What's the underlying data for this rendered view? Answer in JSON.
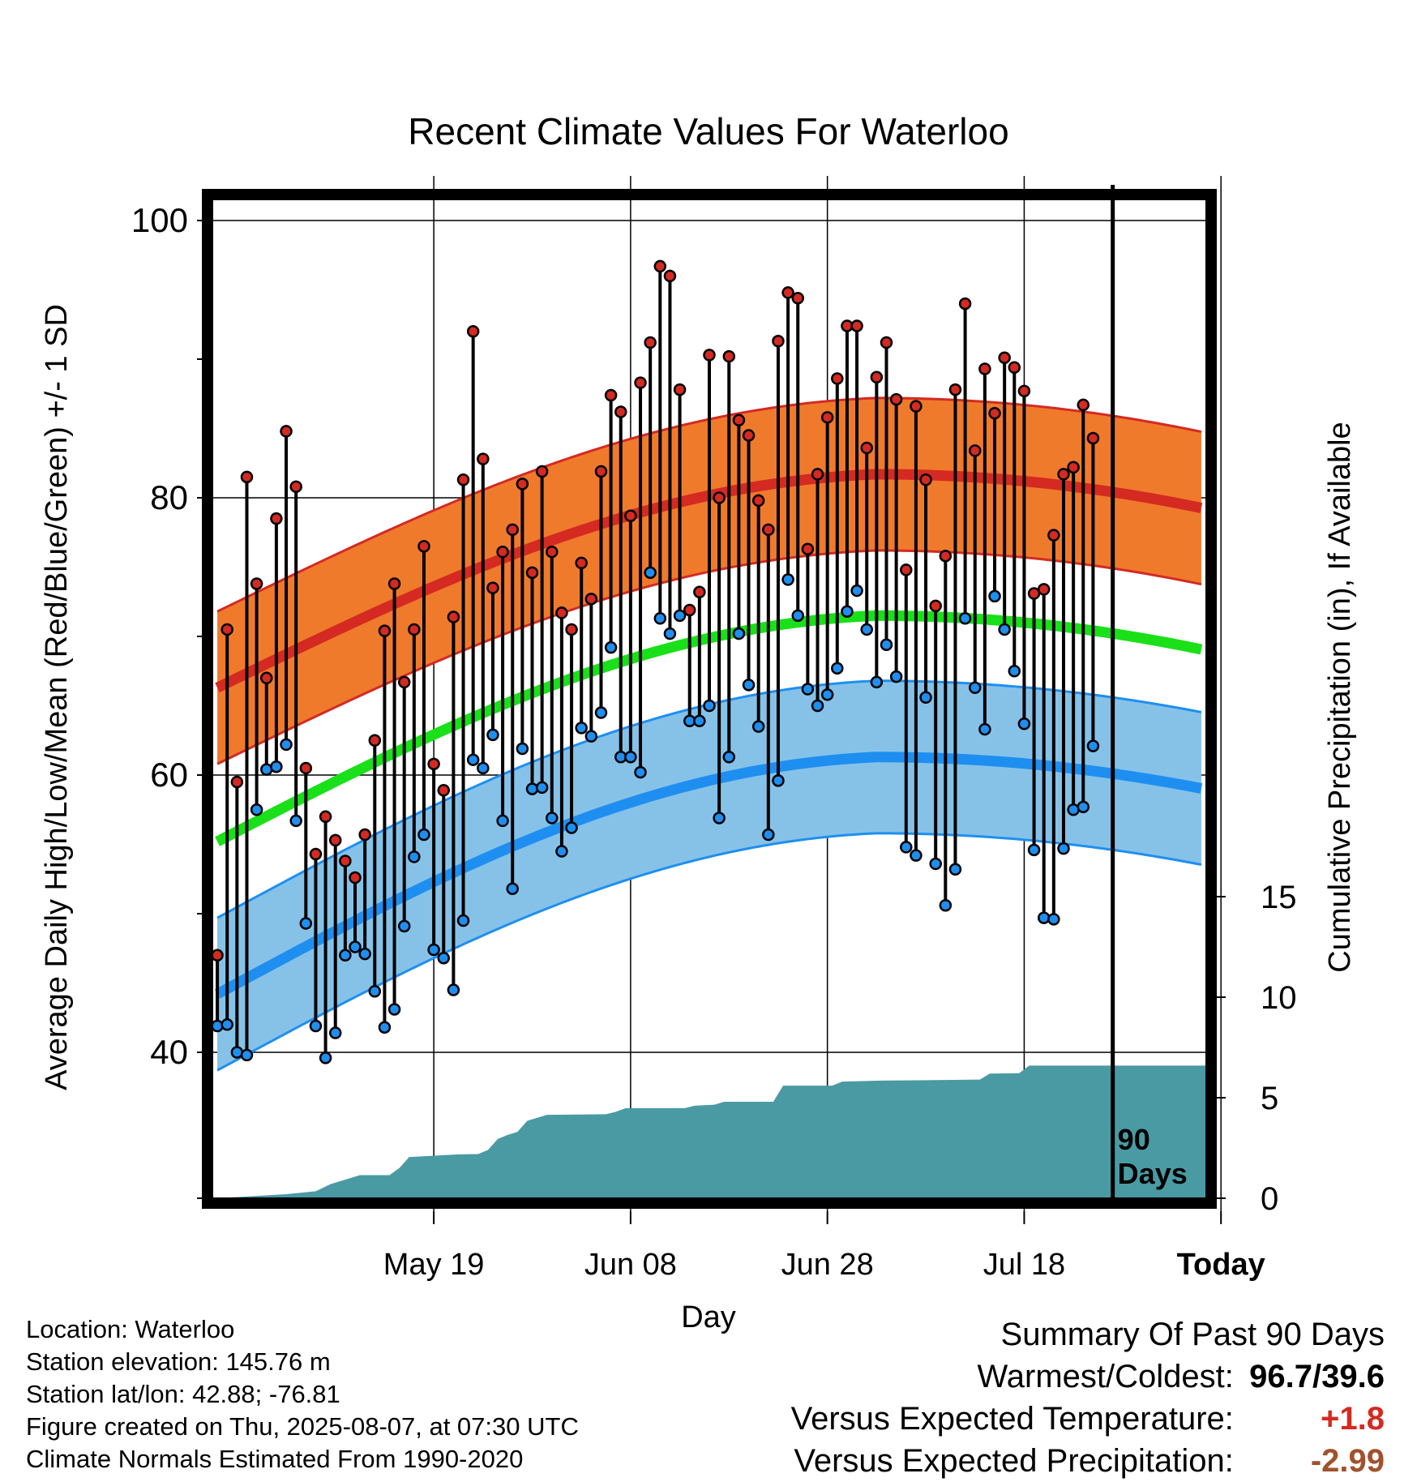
{
  "chart_data": {
    "type": "line",
    "title": "Recent Climate Values For Waterloo",
    "xlabel": "Day",
    "ylabel": "Average Daily High/Low/Mean (Red/Blue/Green) +/- 1 SD",
    "y2label": "Cumulative Precipitation (in), If Available",
    "x_ticks": [
      "May 19",
      "Jun 08",
      "Jun 28",
      "Jul 18",
      "Today"
    ],
    "y_ticks": [
      "40",
      "60",
      "80",
      "100"
    ],
    "y2_ticks": [
      "0",
      "5",
      "10",
      "15"
    ],
    "today_marker_label": [
      "90",
      "Days"
    ],
    "xlim": [
      -11.5,
      89.5
    ],
    "ylim": [
      30,
      102
    ],
    "y2lim": [
      0,
      20
    ],
    "grid": true,
    "x_dates_start": "May 8",
    "daily_high": [
      47,
      70.5,
      59.5,
      81.5,
      73.8,
      67,
      78.5,
      84.8,
      80.8,
      60.5,
      54.3,
      57,
      55.3,
      53.8,
      52.6,
      55.7,
      62.5,
      70.4,
      73.8,
      66.7,
      70.5,
      76.5,
      60.8,
      58.9,
      71.4,
      81.3,
      92,
      82.8,
      73.5,
      76.1,
      77.7,
      81,
      74.6,
      81.9,
      76.1,
      71.7,
      70.5,
      75.3,
      72.7,
      81.9,
      87.4,
      86.2,
      78.7,
      88.3,
      91.2,
      96.7,
      96,
      87.8,
      71.9,
      73.2,
      90.3,
      80,
      90.2,
      85.6,
      84.5,
      79.8,
      77.7,
      91.3,
      94.8,
      94.4,
      76.3,
      81.7,
      85.8,
      88.6,
      92.4,
      92.4,
      83.6,
      88.7,
      91.2,
      87.1,
      74.8,
      86.6,
      81.3,
      72.2,
      75.8,
      87.8,
      94,
      83.4,
      89.3,
      86.1,
      90.1,
      89.4,
      87.7,
      73.1,
      73.4,
      77.3,
      81.7,
      82.2,
      86.7,
      84.3
    ],
    "daily_low": [
      41.9,
      42,
      40,
      39.8,
      57.5,
      60.4,
      60.6,
      62.2,
      56.7,
      49.3,
      41.9,
      39.6,
      41.4,
      47,
      47.6,
      47.1,
      44.4,
      41.8,
      43.1,
      49.1,
      54.1,
      55.7,
      47.4,
      46.8,
      44.5,
      49.5,
      61.1,
      60.5,
      62.9,
      56.7,
      51.8,
      61.9,
      59,
      59.1,
      56.9,
      54.5,
      56.2,
      63.4,
      62.8,
      64.5,
      69.2,
      61.3,
      61.3,
      60.2,
      74.6,
      71.3,
      70.2,
      71.5,
      63.9,
      63.9,
      65,
      56.9,
      61.3,
      70.2,
      66.5,
      63.5,
      55.7,
      59.6,
      74.1,
      71.5,
      66.2,
      65,
      65.8,
      67.7,
      71.8,
      73.3,
      70.5,
      66.7,
      69.4,
      67.1,
      54.8,
      54.2,
      65.6,
      53.6,
      50.6,
      53.2,
      71.3,
      66.3,
      63.3,
      72.9,
      70.5,
      67.5,
      63.7,
      54.6,
      49.7,
      49.6,
      54.7,
      57.5,
      57.7,
      62.1
    ],
    "normal_high": {
      "start": 66.3,
      "peak": 81.7,
      "peak_day": 67,
      "end": 80.3
    },
    "normal_high_sd": 5.5,
    "normal_mean": {
      "start": 55.2,
      "peak": 71.5,
      "peak_day": 67,
      "end": 70.1
    },
    "normal_low": {
      "start": 44.2,
      "peak": 61.3,
      "peak_day": 67,
      "end": 60
    },
    "normal_low_sd": 5.5,
    "cumulative_precip": [
      0,
      0,
      0,
      0,
      0,
      0,
      0,
      0.2,
      0.3,
      0.33,
      0.55,
      0.76,
      1.0,
      1.15,
      1.2,
      1.25,
      1.3,
      1.45,
      1.77,
      1.95,
      2.05,
      2.1,
      2.18,
      2.2,
      2.25,
      2.3,
      2.58,
      3.13,
      3.53,
      3.85,
      4.1,
      4.3,
      4.42,
      4.55,
      4.6,
      4.62,
      4.65,
      4.7,
      4.75,
      4.82,
      5.1,
      5.35,
      5.52,
      5.56,
      5.58,
      5.6,
      5.6,
      5.6,
      6.25,
      6.3,
      6.35,
      6.35,
      6.5,
      6.7,
      6.7,
      6.8,
      6.82,
      6.85,
      6.9,
      6.95,
      6.97,
      7.0,
      7.05,
      7.1,
      7.15,
      7.2,
      7.22,
      7.27,
      7.28,
      7.32,
      7.35,
      7.38,
      7.4,
      7.45,
      7.5,
      7.55,
      7.6,
      7.65,
      7.7,
      7.75,
      7.8,
      7.85,
      7.9,
      7.95,
      8.0,
      8.05,
      8.1,
      8.15,
      8.2,
      8.2
    ],
    "precip_steps": [
      [
        0,
        0
      ],
      [
        7,
        0.2
      ],
      [
        10,
        0.35
      ],
      [
        11.5,
        0.7
      ],
      [
        14.5,
        1.15
      ],
      [
        17.5,
        1.15
      ],
      [
        18.5,
        1.5
      ],
      [
        19.5,
        2.05
      ],
      [
        21.5,
        2.1
      ],
      [
        24.5,
        2.18
      ],
      [
        26.5,
        2.2
      ],
      [
        27.5,
        2.4
      ],
      [
        28.5,
        2.95
      ],
      [
        29.5,
        3.15
      ],
      [
        30.5,
        3.3
      ],
      [
        31.5,
        3.85
      ],
      [
        33.5,
        4.15
      ],
      [
        39.5,
        4.18
      ],
      [
        40.5,
        4.3
      ],
      [
        41.5,
        4.48
      ],
      [
        47.5,
        4.48
      ],
      [
        48.5,
        4.6
      ],
      [
        50.5,
        4.65
      ],
      [
        51.5,
        4.8
      ],
      [
        56.5,
        4.8
      ],
      [
        57.5,
        5.6
      ],
      [
        62.5,
        5.6
      ],
      [
        63.5,
        5.8
      ],
      [
        67.5,
        5.85
      ],
      [
        77.5,
        5.9
      ],
      [
        78.5,
        6.2
      ],
      [
        81.5,
        6.22
      ],
      [
        82.5,
        6.6
      ],
      [
        93,
        6.6
      ]
    ]
  },
  "info": {
    "location": "Location: Waterloo",
    "elevation": "Station elevation: 145.76 m",
    "latlon": "Station lat/lon: 42.88; -76.81",
    "created": "Figure created on Thu, 2025-08-07, at 07:30 UTC",
    "normals": "Climate Normals Estimated From 1990-2020"
  },
  "summary": {
    "heading": "Summary Of Past 90 Days",
    "warm_cold_label": "Warmest/Coldest:",
    "warm_cold_value": "96.7/39.6",
    "temp_label": "Versus Expected Temperature:",
    "temp_value": "+1.8",
    "precip_label": "Versus Expected Precipitation:",
    "precip_value": "-2.99"
  },
  "colors": {
    "high_band": "#f07a2c",
    "high_line": "#d42a22",
    "mean_line": "#19e019",
    "low_band": "#86c2e8",
    "low_line": "#1e8ff0",
    "precip": "#4a9aa4",
    "high_marker": "#d42a22",
    "low_marker": "#1e8ff0",
    "frame": "#000000",
    "temp_anomaly": "#d42a22",
    "precip_anomaly": "#a0522d"
  }
}
